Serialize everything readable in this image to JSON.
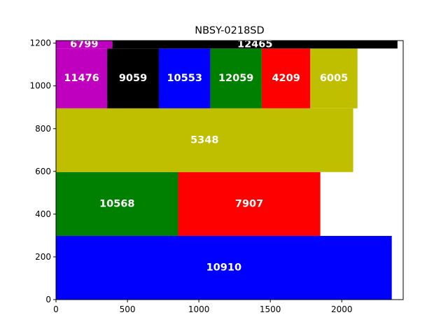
{
  "chart_data": {
    "type": "bar",
    "title": "NBSY-0218SD",
    "xlabel": "",
    "ylabel": "",
    "xlim": [
      0,
      2430
    ],
    "ylim": [
      0,
      1212
    ],
    "xticks": [
      0,
      500,
      1000,
      1500,
      2000
    ],
    "yticks": [
      0,
      200,
      400,
      600,
      800,
      1000,
      1200
    ],
    "grid": false,
    "legend": "none",
    "rects": [
      {
        "label": "10910",
        "x0": 0,
        "x1": 2350,
        "y0": 0,
        "y1": 298,
        "color": "#0000ff"
      },
      {
        "label": "10568",
        "x0": 0,
        "x1": 855,
        "y0": 298,
        "y1": 597,
        "color": "#008000"
      },
      {
        "label": "7907",
        "x0": 855,
        "x1": 1850,
        "y0": 298,
        "y1": 597,
        "color": "#ff0000"
      },
      {
        "label": "5348",
        "x0": 0,
        "x1": 2080,
        "y0": 597,
        "y1": 895,
        "color": "#bfbf00"
      },
      {
        "label": "11476",
        "x0": 0,
        "x1": 358,
        "y0": 895,
        "y1": 1175,
        "color": "#bf00bf"
      },
      {
        "label": "9059",
        "x0": 358,
        "x1": 720,
        "y0": 895,
        "y1": 1175,
        "color": "#000000"
      },
      {
        "label": "10553",
        "x0": 720,
        "x1": 1080,
        "y0": 895,
        "y1": 1175,
        "color": "#0000ff"
      },
      {
        "label": "12059",
        "x0": 1080,
        "x1": 1440,
        "y0": 895,
        "y1": 1175,
        "color": "#008000"
      },
      {
        "label": "4209",
        "x0": 1440,
        "x1": 1780,
        "y0": 895,
        "y1": 1175,
        "color": "#ff0000"
      },
      {
        "label": "6005",
        "x0": 1780,
        "x1": 2110,
        "y0": 895,
        "y1": 1175,
        "color": "#bfbf00"
      },
      {
        "label": "6799",
        "x0": 0,
        "x1": 395,
        "y0": 1175,
        "y1": 1212,
        "color": "#bf00bf"
      },
      {
        "label": "12465",
        "x0": 395,
        "x1": 2390,
        "y0": 1175,
        "y1": 1212,
        "color": "#000000"
      }
    ]
  }
}
